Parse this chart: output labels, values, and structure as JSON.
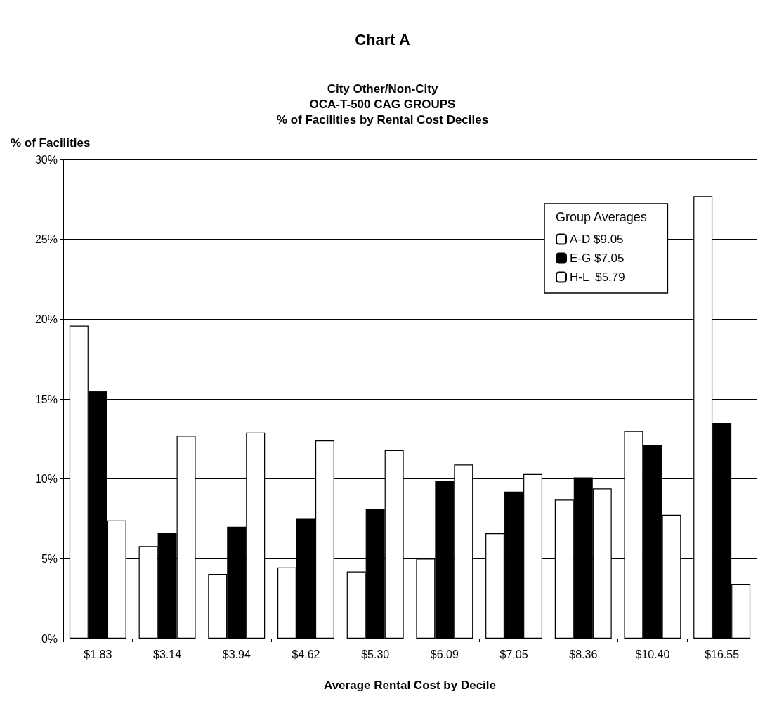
{
  "chart_data": {
    "type": "bar",
    "title": "Chart A",
    "subtitle": "City Other/Non-City\nOCA-T-500 CAG GROUPS\n% of Facilities by Rental Cost Deciles",
    "xlabel": "Average Rental Cost by Decile",
    "ylabel": "% of Facilities",
    "legend_title": "Group Averages",
    "categories": [
      "$1.83",
      "$3.14",
      "$3.94",
      "$4.62",
      "$5.30",
      "$6.09",
      "$7.05",
      "$8.36",
      "$10.40",
      "$16.55"
    ],
    "series": [
      {
        "name": "A-D $9.05",
        "color": "#ffffff",
        "values": [
          19.6,
          5.8,
          4.05,
          4.45,
          4.2,
          5.0,
          6.6,
          8.7,
          13.0,
          27.7
        ]
      },
      {
        "name": "E-G $7.05",
        "color": "#000000",
        "values": [
          15.5,
          6.6,
          7.0,
          7.5,
          8.1,
          9.9,
          9.2,
          10.1,
          12.1,
          13.5
        ]
      },
      {
        "name": "H-L  $5.79",
        "color": "#ffffff",
        "values": [
          7.4,
          12.7,
          12.9,
          12.4,
          11.8,
          10.9,
          10.3,
          9.4,
          7.75,
          3.4
        ]
      }
    ],
    "ylim": [
      0,
      30
    ],
    "yticks": [
      {
        "value": 0,
        "label": "0%"
      },
      {
        "value": 5,
        "label": "5%"
      },
      {
        "value": 10,
        "label": "10%"
      },
      {
        "value": 15,
        "label": "15%"
      },
      {
        "value": 20,
        "label": "20%"
      },
      {
        "value": 25,
        "label": "25%"
      },
      {
        "value": 30,
        "label": "30%"
      }
    ],
    "grid": "y",
    "legend": "top right"
  }
}
